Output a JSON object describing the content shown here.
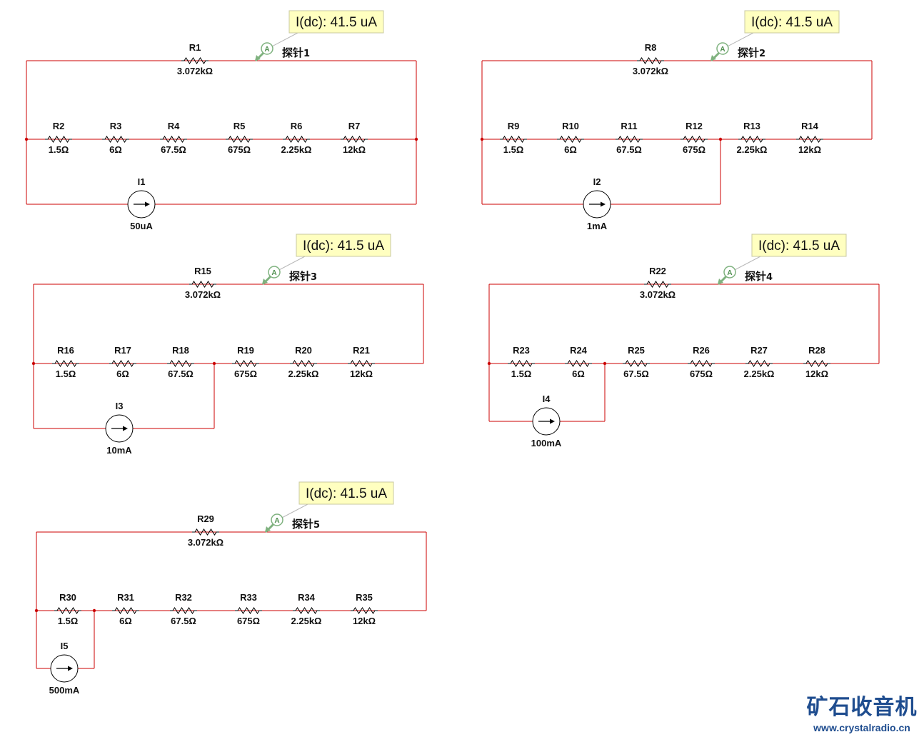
{
  "circuits": [
    {
      "name": "circuit-1",
      "meter": "I(dc): 41.5 uA",
      "probe": "探针",
      "probe_num": "1",
      "top_resistor": {
        "ref": "R1",
        "value": "3.072kΩ"
      },
      "resistors": [
        {
          "ref": "R2",
          "value": "1.5Ω"
        },
        {
          "ref": "R3",
          "value": "6Ω"
        },
        {
          "ref": "R4",
          "value": "67.5Ω"
        },
        {
          "ref": "R5",
          "value": "675Ω"
        },
        {
          "ref": "R6",
          "value": "2.25kΩ"
        },
        {
          "ref": "R7",
          "value": "12kΩ"
        }
      ],
      "source": {
        "ref": "I1",
        "value": "50uA"
      }
    },
    {
      "name": "circuit-2",
      "meter": "I(dc): 41.5 uA",
      "probe": "探针",
      "probe_num": "2",
      "top_resistor": {
        "ref": "R8",
        "value": "3.072kΩ"
      },
      "resistors": [
        {
          "ref": "R9",
          "value": "1.5Ω"
        },
        {
          "ref": "R10",
          "value": "6Ω"
        },
        {
          "ref": "R11",
          "value": "67.5Ω"
        },
        {
          "ref": "R12",
          "value": "675Ω"
        },
        {
          "ref": "R13",
          "value": "2.25kΩ"
        },
        {
          "ref": "R14",
          "value": "12kΩ"
        }
      ],
      "source": {
        "ref": "I2",
        "value": "1mA"
      }
    },
    {
      "name": "circuit-3",
      "meter": "I(dc): 41.5 uA",
      "probe": "探针",
      "probe_num": "3",
      "top_resistor": {
        "ref": "R15",
        "value": "3.072kΩ"
      },
      "resistors": [
        {
          "ref": "R16",
          "value": "1.5Ω"
        },
        {
          "ref": "R17",
          "value": "6Ω"
        },
        {
          "ref": "R18",
          "value": "67.5Ω"
        },
        {
          "ref": "R19",
          "value": "675Ω"
        },
        {
          "ref": "R20",
          "value": "2.25kΩ"
        },
        {
          "ref": "R21",
          "value": "12kΩ"
        }
      ],
      "source": {
        "ref": "I3",
        "value": "10mA"
      }
    },
    {
      "name": "circuit-4",
      "meter": "I(dc): 41.5 uA",
      "probe": "探针",
      "probe_num": "4",
      "top_resistor": {
        "ref": "R22",
        "value": "3.072kΩ"
      },
      "resistors": [
        {
          "ref": "R23",
          "value": "1.5Ω"
        },
        {
          "ref": "R24",
          "value": "6Ω"
        },
        {
          "ref": "R25",
          "value": "67.5Ω"
        },
        {
          "ref": "R26",
          "value": "675Ω"
        },
        {
          "ref": "R27",
          "value": "2.25kΩ"
        },
        {
          "ref": "R28",
          "value": "12kΩ"
        }
      ],
      "source": {
        "ref": "I4",
        "value": "100mA"
      }
    },
    {
      "name": "circuit-5",
      "meter": "I(dc): 41.5 uA",
      "probe": "探针",
      "probe_num": "5",
      "top_resistor": {
        "ref": "R29",
        "value": "3.072kΩ"
      },
      "resistors": [
        {
          "ref": "R30",
          "value": "1.5Ω"
        },
        {
          "ref": "R31",
          "value": "6Ω"
        },
        {
          "ref": "R32",
          "value": "67.5Ω"
        },
        {
          "ref": "R33",
          "value": "675Ω"
        },
        {
          "ref": "R34",
          "value": "2.25kΩ"
        },
        {
          "ref": "R35",
          "value": "12kΩ"
        }
      ],
      "source": {
        "ref": "I5",
        "value": "500mA"
      }
    }
  ],
  "brand": {
    "title": "矿石收音机",
    "url": "www.crystalradio.cn"
  },
  "colors": {
    "wire": "#cc0000",
    "meter_bg": "#ffffc0",
    "probe": "#7fb27f",
    "brand": "#1f4d8f"
  }
}
